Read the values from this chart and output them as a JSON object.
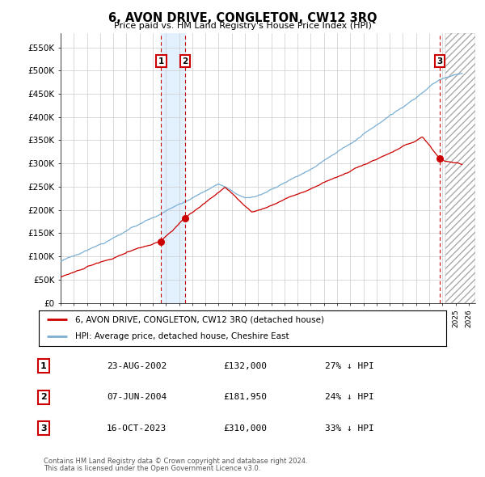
{
  "title": "6, AVON DRIVE, CONGLETON, CW12 3RQ",
  "subtitle": "Price paid vs. HM Land Registry's House Price Index (HPI)",
  "ylim": [
    0,
    580000
  ],
  "yticks": [
    0,
    50000,
    100000,
    150000,
    200000,
    250000,
    300000,
    350000,
    400000,
    450000,
    500000,
    550000
  ],
  "ytick_labels": [
    "£0",
    "£50K",
    "£100K",
    "£150K",
    "£200K",
    "£250K",
    "£300K",
    "£350K",
    "£400K",
    "£450K",
    "£500K",
    "£550K"
  ],
  "xmin": 1995.0,
  "xmax": 2026.5,
  "hatch_start": 2024.2,
  "transactions": [
    {
      "label": "1",
      "date": "23-AUG-2002",
      "price": 132000,
      "pct": "27%",
      "x": 2002.64
    },
    {
      "label": "2",
      "date": "07-JUN-2004",
      "price": 181950,
      "pct": "24%",
      "x": 2004.44
    },
    {
      "label": "3",
      "date": "16-OCT-2023",
      "price": 310000,
      "pct": "33%",
      "x": 2023.79
    }
  ],
  "hpi_color": "#7bafd4",
  "price_color": "#cc0000",
  "shade_color": "#ddeeff",
  "legend_label_price": "6, AVON DRIVE, CONGLETON, CW12 3RQ (detached house)",
  "legend_label_hpi": "HPI: Average price, detached house, Cheshire East",
  "footer1": "Contains HM Land Registry data © Crown copyright and database right 2024.",
  "footer2": "This data is licensed under the Open Government Licence v3.0.",
  "background_color": "#ffffff",
  "grid_color": "#cccccc"
}
